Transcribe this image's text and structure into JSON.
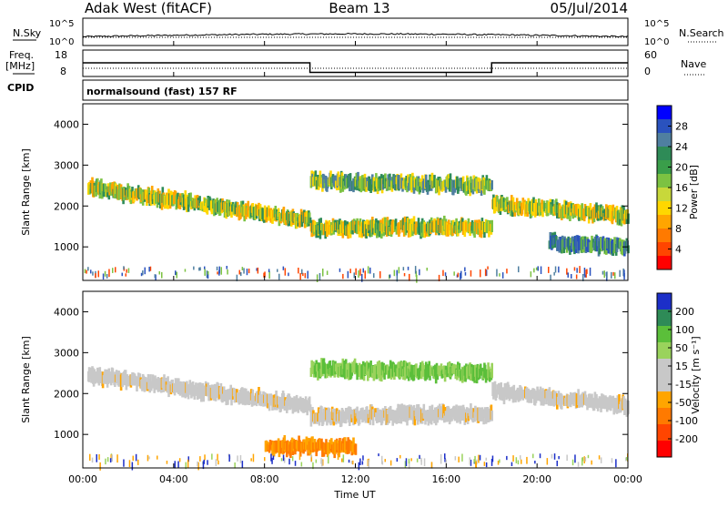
{
  "header": {
    "site": "Adak West (fitACF)",
    "beam": "Beam 13",
    "date": "05/Jul/2014"
  },
  "noise_panel": {
    "left_label": "N.Sky",
    "right_label": "N.Search",
    "left_ticks": [
      "10^5",
      "10^0"
    ],
    "right_ticks": [
      "10^5",
      "10^0"
    ]
  },
  "freq_panel": {
    "left_label_1": "Freq.",
    "left_label_2": "[MHz]",
    "right_label": "Nave",
    "left_ticks": [
      "18",
      "8"
    ],
    "right_ticks": [
      "60",
      "0"
    ],
    "freq_steps": [
      {
        "start_hour": 0,
        "end_hour": 10,
        "mhz": 14
      },
      {
        "start_hour": 10,
        "end_hour": 18,
        "mhz": 9.8
      },
      {
        "start_hour": 18,
        "end_hour": 24,
        "mhz": 14
      }
    ],
    "nave_value": 12
  },
  "cpid": {
    "label": "CPID",
    "program": "normalsound (fast) 157 RF"
  },
  "x_axis": {
    "label": "Time UT",
    "ticks": [
      "00:00",
      "04:00",
      "08:00",
      "12:00",
      "16:00",
      "20:00",
      "00:00"
    ],
    "tick_hours": [
      0,
      4,
      8,
      12,
      16,
      20,
      24
    ]
  },
  "chart_data": [
    {
      "type": "heatmap",
      "title": "Power",
      "ylabel": "Slant Range [km]",
      "xlabel": "Time UT",
      "ylim": [
        180,
        4500
      ],
      "yticks": [
        "1000",
        "2000",
        "3000",
        "4000"
      ],
      "ytick_values": [
        1000,
        2000,
        3000,
        4000
      ],
      "colorbar": {
        "label": "Power [dB]",
        "ticks": [
          "4",
          "8",
          "12",
          "16",
          "20",
          "24",
          "28"
        ],
        "colors": [
          "#0000ff",
          "#2a52be",
          "#4f7fa0",
          "#2e8b57",
          "#3a9e4a",
          "#7cc242",
          "#c8d83a",
          "#ffd700",
          "#ffa500",
          "#ff7a00",
          "#ff4500",
          "#ff0000"
        ]
      },
      "bands": [
        {
          "start_hour": 0.2,
          "end_hour": 10,
          "range_start_km": 2450,
          "range_end_km": 1650,
          "level": 4
        },
        {
          "start_hour": 10,
          "end_hour": 18,
          "range_start_km": 2600,
          "range_end_km": 2500,
          "level": 3
        },
        {
          "start_hour": 10,
          "end_hour": 18,
          "range_start_km": 1450,
          "range_end_km": 1500,
          "level": 4
        },
        {
          "start_hour": 18,
          "end_hour": 24,
          "range_start_km": 2050,
          "range_end_km": 1750,
          "level": 4
        },
        {
          "start_hour": 20.5,
          "end_hour": 24,
          "range_start_km": 1100,
          "range_end_km": 1000,
          "level": 2
        }
      ]
    },
    {
      "type": "heatmap",
      "title": "Velocity",
      "ylabel": "Slant Range [km]",
      "xlabel": "Time UT",
      "ylim": [
        180,
        4500
      ],
      "yticks": [
        "1000",
        "2000",
        "3000",
        "4000"
      ],
      "ytick_values": [
        1000,
        2000,
        3000,
        4000
      ],
      "colorbar": {
        "label": "Velocity [m s⁻¹]",
        "ticks": [
          "200",
          "100",
          "50",
          "15",
          "-15",
          "-50",
          "-100",
          "-200"
        ],
        "colors": [
          "#1c2fc8",
          "#2e8b57",
          "#5bbf3a",
          "#9ad35c",
          "#c8c8c8",
          "#c8c8c8",
          "#ffa500",
          "#ff7a00",
          "#ff4500",
          "#ff0000"
        ]
      },
      "bands": [
        {
          "start_hour": 0.2,
          "end_hour": 10,
          "range_start_km": 2450,
          "range_end_km": 1700,
          "level": "-15..15"
        },
        {
          "start_hour": 10,
          "end_hour": 18,
          "range_start_km": 2600,
          "range_end_km": 2500,
          "level": "50..100"
        },
        {
          "start_hour": 10,
          "end_hour": 18,
          "range_start_km": 1450,
          "range_end_km": 1500,
          "level": "-15..15"
        },
        {
          "start_hour": 18,
          "end_hour": 24,
          "range_start_km": 2050,
          "range_end_km": 1700,
          "level": "-15..15"
        },
        {
          "start_hour": 8,
          "end_hour": 12,
          "range_start_km": 700,
          "range_end_km": 700,
          "level": "-50..-100"
        }
      ]
    }
  ]
}
